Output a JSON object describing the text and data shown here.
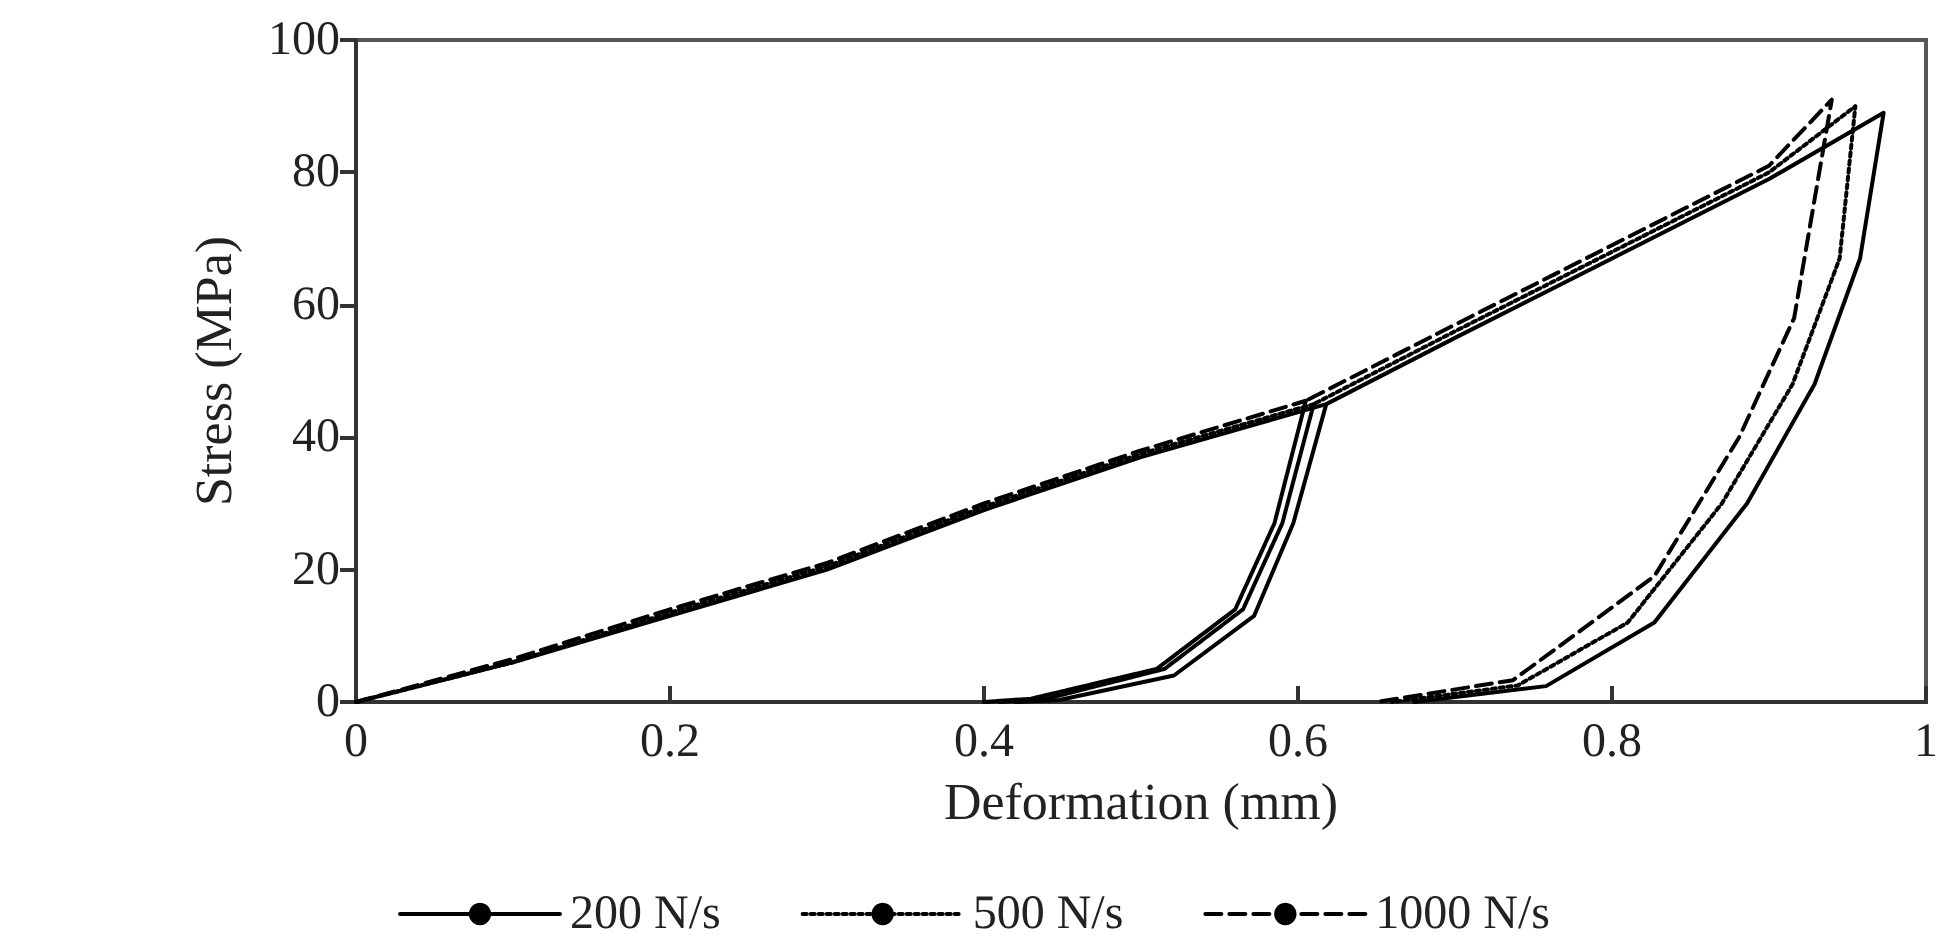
{
  "chart_data": {
    "type": "line",
    "xlabel": "Deformation (mm)",
    "ylabel": "Stress (MPa)",
    "xlim": [
      0,
      1
    ],
    "xticks": [
      0,
      0.2,
      0.4,
      0.6,
      0.8,
      1
    ],
    "ylim": [
      0,
      100
    ],
    "yticks": [
      0,
      20,
      40,
      60,
      80,
      100
    ],
    "grid": false,
    "legend": "bottom",
    "marker": "none",
    "series": [
      {
        "name": "200 N/s",
        "color": "#000000",
        "line_style": "solid",
        "x": [
          0,
          0.1,
          0.2,
          0.3,
          0.4,
          0.5,
          0.618,
          0.597,
          0.572,
          0.521,
          0.448,
          0.42,
          0.448,
          0.521,
          0.572,
          0.597,
          0.618,
          0.7,
          0.8,
          0.9,
          0.973,
          0.958,
          0.929,
          0.886,
          0.827,
          0.758,
          0.674
        ],
        "values": [
          0,
          6,
          13,
          20,
          29,
          37,
          45,
          27,
          13,
          4,
          0.3,
          0,
          0.3,
          4,
          13,
          27,
          45,
          55,
          67,
          79,
          89,
          67,
          48,
          30,
          12,
          2.4,
          0
        ]
      },
      {
        "name": "500 N/s",
        "color": "#000000",
        "line_style": "dotted",
        "x": [
          0,
          0.1,
          0.2,
          0.3,
          0.4,
          0.5,
          0.61,
          0.59,
          0.565,
          0.515,
          0.44,
          0.41,
          0.44,
          0.515,
          0.565,
          0.59,
          0.61,
          0.7,
          0.8,
          0.9,
          0.955,
          0.945,
          0.915,
          0.87,
          0.81,
          0.74,
          0.66
        ],
        "values": [
          0,
          6,
          13.5,
          20.5,
          29.5,
          37.5,
          45,
          27,
          14,
          5,
          0.5,
          0,
          0.5,
          5,
          14,
          27,
          45,
          56,
          68,
          80,
          90,
          67,
          48,
          30,
          12,
          2.5,
          0
        ]
      },
      {
        "name": "1000 N/s",
        "color": "#000000",
        "line_style": "dashed",
        "x": [
          0,
          0.1,
          0.2,
          0.3,
          0.4,
          0.5,
          0.605,
          0.585,
          0.56,
          0.51,
          0.43,
          0.4,
          0.43,
          0.51,
          0.56,
          0.585,
          0.605,
          0.7,
          0.8,
          0.9,
          0.94,
          0.932,
          0.916,
          0.881,
          0.827,
          0.737,
          0.65
        ],
        "values": [
          0,
          6.5,
          14,
          21,
          30,
          38,
          45.5,
          27,
          14,
          5,
          0.5,
          0,
          0.5,
          5,
          14,
          27,
          45.5,
          57,
          69,
          81,
          91,
          80,
          58,
          40,
          19,
          3.3,
          0
        ]
      }
    ]
  }
}
